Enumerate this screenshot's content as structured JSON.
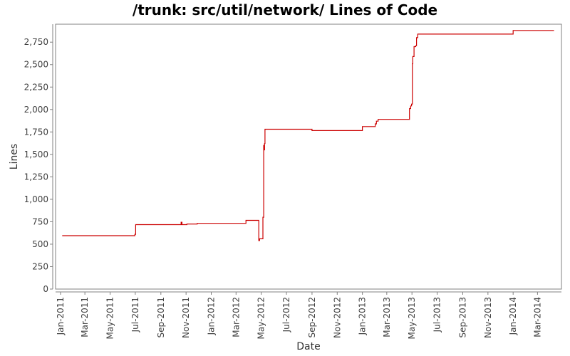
{
  "chart_data": {
    "type": "line",
    "title": "/trunk: src/util/network/ Lines of Code",
    "xlabel": "Date",
    "ylabel": "Lines",
    "xlim": [
      "2010-12-20",
      "2014-04-28"
    ],
    "ylim": [
      0,
      2950
    ],
    "y_ticks": [
      0,
      250,
      500,
      750,
      1000,
      1250,
      1500,
      1750,
      2000,
      2250,
      2500,
      2750
    ],
    "y_tick_labels": [
      "0",
      "250",
      "500",
      "750",
      "1,000",
      "1,250",
      "1,500",
      "1,750",
      "2,000",
      "2,250",
      "2,500",
      "2,750"
    ],
    "x_ticks": [
      "2011-01-01",
      "2011-03-01",
      "2011-05-01",
      "2011-07-01",
      "2011-09-01",
      "2011-11-01",
      "2012-01-01",
      "2012-03-01",
      "2012-05-01",
      "2012-07-01",
      "2012-09-01",
      "2012-11-01",
      "2013-01-01",
      "2013-03-01",
      "2013-05-01",
      "2013-07-01",
      "2013-09-01",
      "2013-11-01",
      "2014-01-01",
      "2014-03-01"
    ],
    "x_tick_labels": [
      "Jan-2011",
      "Mar-2011",
      "May-2011",
      "Jul-2011",
      "Sep-2011",
      "Nov-2011",
      "Jan-2012",
      "Mar-2012",
      "May-2012",
      "Jul-2012",
      "Sep-2012",
      "Nov-2012",
      "Jan-2013",
      "Mar-2013",
      "May-2013",
      "Jul-2013",
      "Sep-2013",
      "Nov-2013",
      "Jan-2014",
      "Mar-2014"
    ],
    "grid": false,
    "series": [
      {
        "color": "#cc0000",
        "step": true,
        "points": [
          [
            "2011-01-05",
            595
          ],
          [
            "2011-06-30",
            610
          ],
          [
            "2011-07-02",
            718
          ],
          [
            "2011-10-20",
            745
          ],
          [
            "2011-10-22",
            718
          ],
          [
            "2011-11-03",
            725
          ],
          [
            "2011-11-28",
            732
          ],
          [
            "2012-03-25",
            765
          ],
          [
            "2012-04-25",
            540
          ],
          [
            "2012-04-27",
            560
          ],
          [
            "2012-05-05",
            800
          ],
          [
            "2012-05-07",
            1600
          ],
          [
            "2012-05-08",
            1550
          ],
          [
            "2012-05-09",
            1620
          ],
          [
            "2012-05-10",
            1780
          ],
          [
            "2012-09-01",
            1765
          ],
          [
            "2013-01-01",
            1810
          ],
          [
            "2013-02-01",
            1840
          ],
          [
            "2013-02-04",
            1870
          ],
          [
            "2013-02-08",
            1890
          ],
          [
            "2013-04-25",
            2010
          ],
          [
            "2013-04-28",
            2040
          ],
          [
            "2013-04-30",
            2060
          ],
          [
            "2013-05-02",
            2510
          ],
          [
            "2013-05-03",
            2590
          ],
          [
            "2013-05-06",
            2700
          ],
          [
            "2013-05-10",
            2710
          ],
          [
            "2013-05-12",
            2800
          ],
          [
            "2013-05-15",
            2840
          ],
          [
            "2014-01-01",
            2880
          ],
          [
            "2014-04-10",
            2880
          ]
        ]
      }
    ]
  }
}
